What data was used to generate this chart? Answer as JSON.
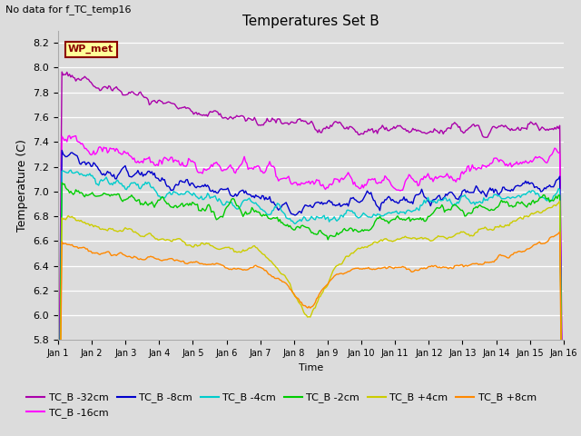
{
  "title": "Temperatures Set B",
  "subtitle": "No data for f_TC_temp16",
  "xlabel": "Time",
  "ylabel": "Temperature (C)",
  "ylim": [
    5.8,
    8.3
  ],
  "xlim": [
    0,
    15
  ],
  "xtick_labels": [
    "Jan 1",
    "Jan 2",
    "Jan 3",
    "Jan 4",
    "Jan 5",
    "Jan 6",
    "Jan 7",
    "Jan 8",
    "Jan 9",
    "Jan 10",
    "Jan 11",
    "Jan 12",
    "Jan 13",
    "Jan 14",
    "Jan 15",
    "Jan 16"
  ],
  "background_color": "#dcdcdc",
  "plot_bg_color": "#dcdcdc",
  "annotation_box": {
    "text": "WP_met",
    "facecolor": "#ffff99",
    "edgecolor": "#8b0000",
    "textcolor": "#8b0000"
  },
  "series": {
    "TC_B -32cm": {
      "color": "#aa00aa"
    },
    "TC_B -16cm": {
      "color": "#ff00ff"
    },
    "TC_B -8cm": {
      "color": "#0000cc"
    },
    "TC_B -4cm": {
      "color": "#00cccc"
    },
    "TC_B -2cm": {
      "color": "#00cc00"
    },
    "TC_B +4cm": {
      "color": "#cccc00"
    },
    "TC_B +8cm": {
      "color": "#ff8800"
    }
  },
  "grid_color": "#ffffff",
  "line_width": 1.0
}
